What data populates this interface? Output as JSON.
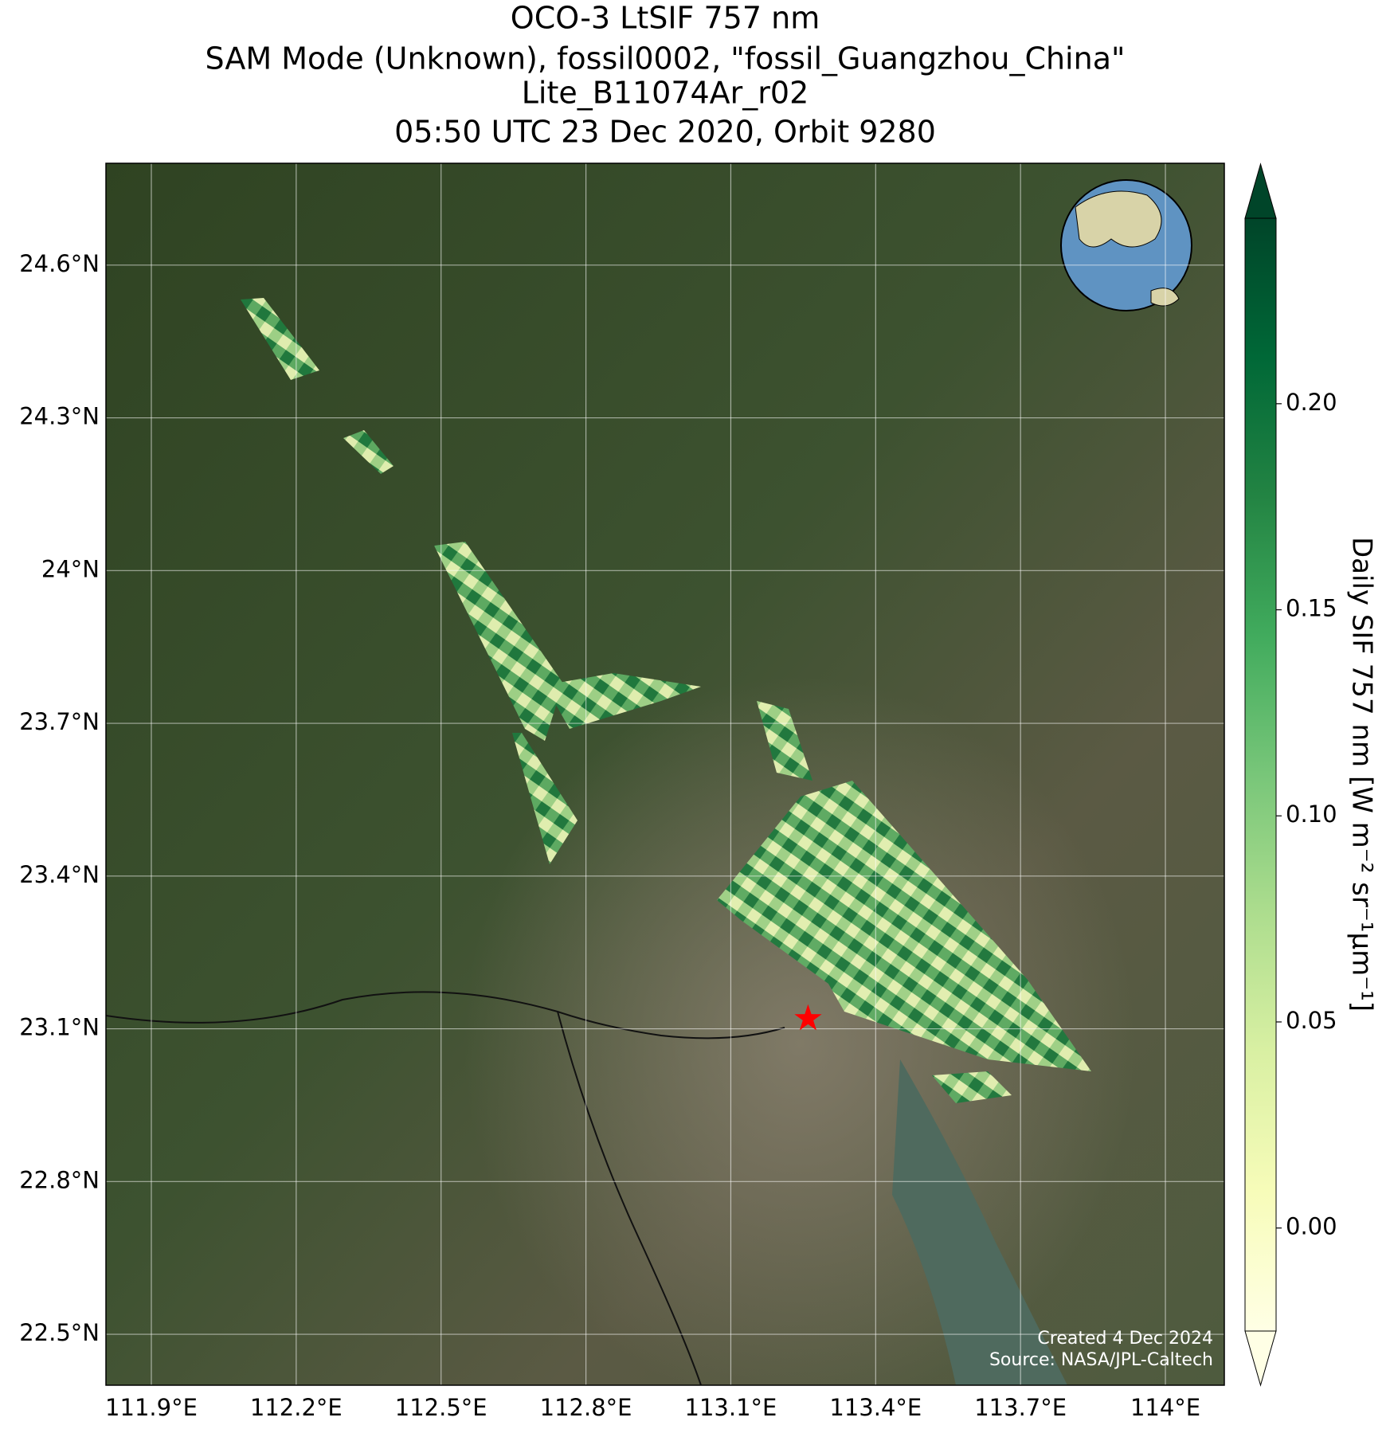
{
  "chart_data": {
    "type": "map",
    "title_lines": [
      "OCO-3 LtSIF 757 nm",
      "SAM Mode (Unknown), fossil0002, \"fossil_Guangzhou_China\"",
      "Lite_B11074Ar_r02",
      "05:50 UTC 23 Dec 2020, Orbit 9280"
    ],
    "xlim": [
      111.806,
      114.122
    ],
    "ylim": [
      22.4,
      24.8
    ],
    "xticks": [
      {
        "value": 111.9,
        "label": "111.9°E"
      },
      {
        "value": 112.2,
        "label": "112.2°E"
      },
      {
        "value": 112.5,
        "label": "112.5°E"
      },
      {
        "value": 112.8,
        "label": "112.8°E"
      },
      {
        "value": 113.1,
        "label": "113.1°E"
      },
      {
        "value": 113.4,
        "label": "113.4°E"
      },
      {
        "value": 113.7,
        "label": "113.7°E"
      },
      {
        "value": 114.0,
        "label": "114°E"
      }
    ],
    "yticks": [
      {
        "value": 22.5,
        "label": "22.5°N"
      },
      {
        "value": 22.8,
        "label": "22.8°N"
      },
      {
        "value": 23.1,
        "label": "23.1°N"
      },
      {
        "value": 23.4,
        "label": "23.4°N"
      },
      {
        "value": 23.7,
        "label": "23.7°N"
      },
      {
        "value": 24.0,
        "label": "24°N"
      },
      {
        "value": 24.3,
        "label": "24.3°N"
      },
      {
        "value": 24.6,
        "label": "24.6°N"
      }
    ],
    "grid": true,
    "marker": {
      "lon": 113.26,
      "lat": 23.12,
      "color": "#ff0000"
    },
    "colorbar": {
      "label": "Daily SIF 757 nm [W m⁻² sr⁻¹µm⁻¹]",
      "colormap": "YlGn",
      "clim": [
        -0.025,
        0.245
      ],
      "ticks": [
        {
          "value": 0.0,
          "label": "0.00"
        },
        {
          "value": 0.05,
          "label": "0.05"
        },
        {
          "value": 0.1,
          "label": "0.10"
        },
        {
          "value": 0.15,
          "label": "0.15"
        },
        {
          "value": 0.2,
          "label": "0.20"
        }
      ]
    },
    "annotations": [
      "Created 4 Dec 2024",
      "Source: NASA/JPL-Caltech"
    ]
  }
}
